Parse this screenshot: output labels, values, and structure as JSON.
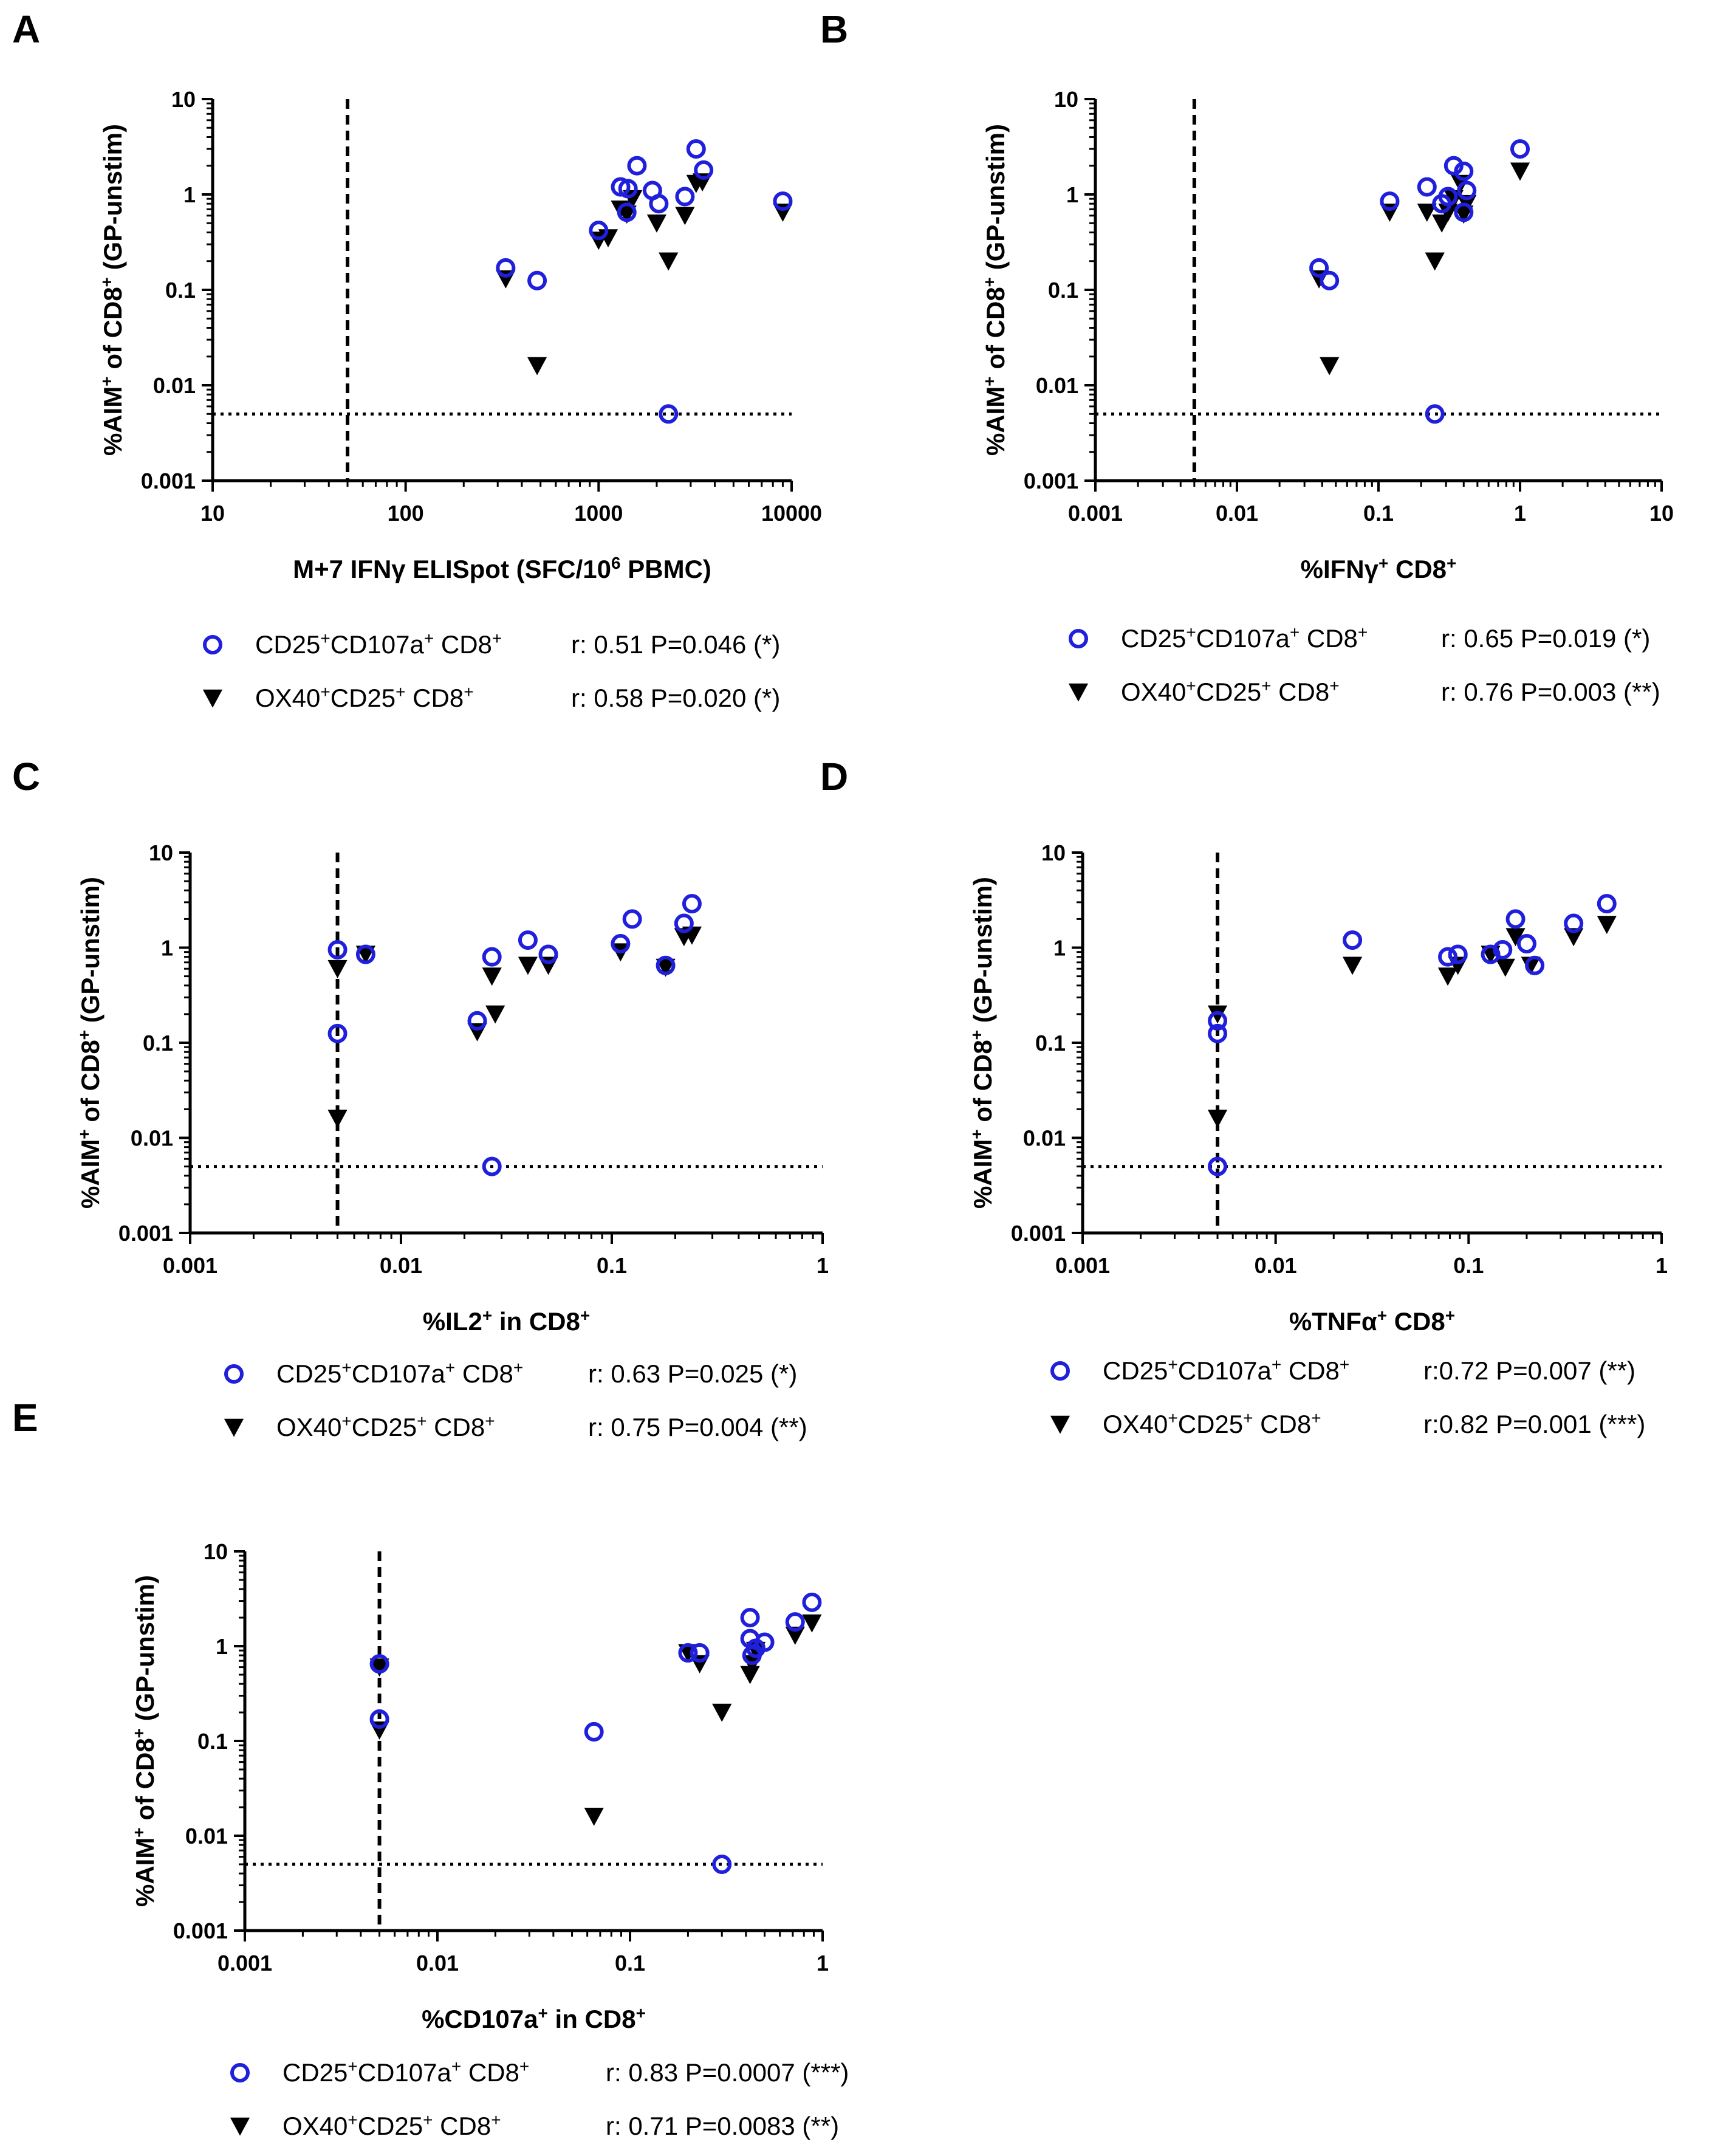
{
  "colors": {
    "circle": "#1f1fdc",
    "triangle": "#000000",
    "axis": "#000000"
  },
  "chart_data": [
    {
      "id": "A",
      "type": "scatter",
      "panel_label": "A",
      "xscale": "log",
      "yscale": "log",
      "xlim": [
        10,
        10000
      ],
      "ylim": [
        0.001,
        10
      ],
      "xticks": [
        "10",
        "100",
        "1000",
        "10000"
      ],
      "yticks": [
        "0.001",
        "0.01",
        "0.1",
        "1",
        "10"
      ],
      "xlabel_parts": [
        [
          "M+7 IFNγ ELISpot (SFC/10",
          ""
        ],
        [
          "6",
          "sup"
        ],
        [
          " PBMC)",
          ""
        ]
      ],
      "ylabel_parts": [
        [
          "%AIM",
          ""
        ],
        [
          "+",
          "sup"
        ],
        [
          " of CD8",
          ""
        ],
        [
          "+",
          "sup"
        ],
        [
          " (GP-unstim)",
          ""
        ]
      ],
      "vline": 50,
      "hline": 0.005,
      "series": [
        {
          "name": "CD25+CD107a+ CD8+",
          "marker": "circle",
          "stats": "r: 0.51 P=0.046 (*)",
          "legend_parts": [
            [
              "CD25",
              ""
            ],
            [
              "+",
              "sup"
            ],
            [
              "CD107a",
              ""
            ],
            [
              "+",
              "sup"
            ],
            [
              " CD8",
              ""
            ],
            [
              "+",
              "sup"
            ]
          ],
          "points": [
            [
              330,
              0.17
            ],
            [
              480,
              0.125
            ],
            [
              1000,
              0.42
            ],
            [
              1300,
              1.2
            ],
            [
              1420,
              1.15
            ],
            [
              1400,
              0.65
            ],
            [
              1580,
              2.0
            ],
            [
              1900,
              1.1
            ],
            [
              2050,
              0.8
            ],
            [
              2300,
              0.005
            ],
            [
              2800,
              0.95
            ],
            [
              3200,
              3.0
            ],
            [
              3500,
              1.8
            ],
            [
              9000,
              0.85
            ]
          ]
        },
        {
          "name": "OX40+CD25+ CD8+",
          "marker": "triangle",
          "stats": "r: 0.58 P=0.020 (*)",
          "legend_parts": [
            [
              "OX40",
              ""
            ],
            [
              "+",
              "sup"
            ],
            [
              "CD25",
              ""
            ],
            [
              "+",
              "sup"
            ],
            [
              " CD8",
              ""
            ],
            [
              "+",
              "sup"
            ]
          ],
          "points": [
            [
              330,
              0.13
            ],
            [
              480,
              0.016
            ],
            [
              1000,
              0.33
            ],
            [
              1120,
              0.35
            ],
            [
              1300,
              0.7
            ],
            [
              1400,
              0.62
            ],
            [
              1500,
              0.9
            ],
            [
              2000,
              0.5
            ],
            [
              2300,
              0.2
            ],
            [
              2800,
              0.6
            ],
            [
              3200,
              1.3
            ],
            [
              3450,
              1.35
            ],
            [
              9000,
              0.65
            ]
          ]
        }
      ]
    },
    {
      "id": "B",
      "type": "scatter",
      "panel_label": "B",
      "xscale": "log",
      "yscale": "log",
      "xlim": [
        0.001,
        10
      ],
      "ylim": [
        0.001,
        10
      ],
      "xticks": [
        "0.001",
        "0.01",
        "0.1",
        "1",
        "10"
      ],
      "yticks": [
        "0.001",
        "0.01",
        "0.1",
        "1",
        "10"
      ],
      "xlabel_parts": [
        [
          "%IFNγ",
          ""
        ],
        [
          "+",
          "sup"
        ],
        [
          " CD8",
          ""
        ],
        [
          "+",
          "sup"
        ]
      ],
      "ylabel_parts": [
        [
          "%AIM",
          ""
        ],
        [
          "+",
          "sup"
        ],
        [
          " of CD8",
          ""
        ],
        [
          "+",
          "sup"
        ],
        [
          " (GP-unstim)",
          ""
        ]
      ],
      "vline": 0.005,
      "hline": 0.005,
      "series": [
        {
          "name": "CD25+CD107a+ CD8+",
          "marker": "circle",
          "stats": "r: 0.65 P=0.019 (*)",
          "legend_parts": [
            [
              "CD25",
              ""
            ],
            [
              "+",
              "sup"
            ],
            [
              "CD107a",
              ""
            ],
            [
              "+",
              "sup"
            ],
            [
              " CD8",
              ""
            ],
            [
              "+",
              "sup"
            ]
          ],
          "points": [
            [
              0.038,
              0.17
            ],
            [
              0.045,
              0.125
            ],
            [
              0.12,
              0.85
            ],
            [
              0.22,
              1.2
            ],
            [
              0.25,
              0.005
            ],
            [
              0.28,
              0.8
            ],
            [
              0.31,
              0.95
            ],
            [
              0.34,
              2.0
            ],
            [
              0.4,
              1.75
            ],
            [
              0.42,
              1.1
            ],
            [
              0.4,
              0.65
            ],
            [
              1.0,
              3.0
            ]
          ]
        },
        {
          "name": "OX40+CD25+ CD8+",
          "marker": "triangle",
          "stats": "r: 0.76 P=0.003 (**)",
          "legend_parts": [
            [
              "OX40",
              ""
            ],
            [
              "+",
              "sup"
            ],
            [
              "CD25",
              ""
            ],
            [
              "+",
              "sup"
            ],
            [
              " CD8",
              ""
            ],
            [
              "+",
              "sup"
            ]
          ],
          "points": [
            [
              0.038,
              0.13
            ],
            [
              0.045,
              0.016
            ],
            [
              0.12,
              0.65
            ],
            [
              0.22,
              0.65
            ],
            [
              0.25,
              0.2
            ],
            [
              0.28,
              0.5
            ],
            [
              0.31,
              0.65
            ],
            [
              0.34,
              0.9
            ],
            [
              0.38,
              1.3
            ],
            [
              0.42,
              0.8
            ],
            [
              0.4,
              0.62
            ],
            [
              1.0,
              1.75
            ]
          ]
        }
      ]
    },
    {
      "id": "C",
      "type": "scatter",
      "panel_label": "C",
      "xscale": "log",
      "yscale": "log",
      "xlim": [
        0.001,
        1
      ],
      "ylim": [
        0.001,
        10
      ],
      "xticks": [
        "0.001",
        "0.01",
        "0.1",
        "1"
      ],
      "yticks": [
        "0.001",
        "0.01",
        "0.1",
        "1",
        "10"
      ],
      "xlabel_parts": [
        [
          "%IL2",
          ""
        ],
        [
          "+",
          "sup"
        ],
        [
          " in CD8",
          ""
        ],
        [
          "+",
          "sup"
        ]
      ],
      "ylabel_parts": [
        [
          "%AIM",
          ""
        ],
        [
          "+",
          "sup"
        ],
        [
          " of CD8",
          ""
        ],
        [
          "+",
          "sup"
        ],
        [
          " (GP-unstim)",
          ""
        ]
      ],
      "vline": 0.005,
      "hline": 0.005,
      "series": [
        {
          "name": "CD25+CD107a+ CD8+",
          "marker": "circle",
          "stats": "r: 0.63 P=0.025 (*)",
          "legend_parts": [
            [
              "CD25",
              ""
            ],
            [
              "+",
              "sup"
            ],
            [
              "CD107a",
              ""
            ],
            [
              "+",
              "sup"
            ],
            [
              " CD8",
              ""
            ],
            [
              "+",
              "sup"
            ]
          ],
          "points": [
            [
              0.005,
              0.95
            ],
            [
              0.005,
              0.125
            ],
            [
              0.0068,
              0.85
            ],
            [
              0.023,
              0.17
            ],
            [
              0.027,
              0.8
            ],
            [
              0.027,
              0.005
            ],
            [
              0.04,
              1.2
            ],
            [
              0.05,
              0.85
            ],
            [
              0.11,
              1.1
            ],
            [
              0.125,
              2.0
            ],
            [
              0.18,
              0.65
            ],
            [
              0.22,
              1.8
            ],
            [
              0.24,
              2.9
            ]
          ]
        },
        {
          "name": "OX40+CD25+ CD8+",
          "marker": "triangle",
          "stats": "r: 0.75 P=0.004 (**)",
          "legend_parts": [
            [
              "OX40",
              ""
            ],
            [
              "+",
              "sup"
            ],
            [
              "CD25",
              ""
            ],
            [
              "+",
              "sup"
            ],
            [
              " CD8",
              ""
            ],
            [
              "+",
              "sup"
            ]
          ],
          "points": [
            [
              0.005,
              0.6
            ],
            [
              0.005,
              0.016
            ],
            [
              0.0068,
              0.85
            ],
            [
              0.023,
              0.13
            ],
            [
              0.027,
              0.5
            ],
            [
              0.028,
              0.2
            ],
            [
              0.04,
              0.65
            ],
            [
              0.05,
              0.65
            ],
            [
              0.11,
              0.9
            ],
            [
              0.18,
              0.62
            ],
            [
              0.22,
              1.3
            ],
            [
              0.24,
              1.35
            ]
          ]
        }
      ]
    },
    {
      "id": "D",
      "type": "scatter",
      "panel_label": "D",
      "xscale": "log",
      "yscale": "log",
      "xlim": [
        0.001,
        1
      ],
      "ylim": [
        0.001,
        10
      ],
      "xticks": [
        "0.001",
        "0.01",
        "0.1",
        "1"
      ],
      "yticks": [
        "0.001",
        "0.01",
        "0.1",
        "1",
        "10"
      ],
      "xlabel_parts": [
        [
          "%TNFα",
          ""
        ],
        [
          "+",
          "sup"
        ],
        [
          " CD8",
          ""
        ],
        [
          "+",
          "sup"
        ]
      ],
      "ylabel_parts": [
        [
          "%AIM",
          ""
        ],
        [
          "+",
          "sup"
        ],
        [
          " of CD8",
          ""
        ],
        [
          "+",
          "sup"
        ],
        [
          " (GP-unstim)",
          ""
        ]
      ],
      "vline": 0.005,
      "hline": 0.005,
      "series": [
        {
          "name": "CD25+CD107a+ CD8+",
          "marker": "circle",
          "stats": "r:0.72 P=0.007 (**)",
          "legend_parts": [
            [
              "CD25",
              ""
            ],
            [
              "+",
              "sup"
            ],
            [
              "CD107a",
              ""
            ],
            [
              "+",
              "sup"
            ],
            [
              " CD8",
              ""
            ],
            [
              "+",
              "sup"
            ]
          ],
          "points": [
            [
              0.005,
              0.17
            ],
            [
              0.005,
              0.125
            ],
            [
              0.005,
              0.005
            ],
            [
              0.025,
              1.2
            ],
            [
              0.078,
              0.8
            ],
            [
              0.088,
              0.85
            ],
            [
              0.13,
              0.85
            ],
            [
              0.15,
              0.95
            ],
            [
              0.175,
              2.0
            ],
            [
              0.2,
              1.1
            ],
            [
              0.22,
              0.65
            ],
            [
              0.35,
              1.8
            ],
            [
              0.52,
              2.9
            ]
          ]
        },
        {
          "name": "OX40+CD25+ CD8+",
          "marker": "triangle",
          "stats": "r:0.82 P=0.001 (***)",
          "legend_parts": [
            [
              "OX40",
              ""
            ],
            [
              "+",
              "sup"
            ],
            [
              "CD25",
              ""
            ],
            [
              "+",
              "sup"
            ],
            [
              " CD8",
              ""
            ],
            [
              "+",
              "sup"
            ]
          ],
          "points": [
            [
              0.005,
              0.2
            ],
            [
              0.005,
              0.016
            ],
            [
              0.025,
              0.65
            ],
            [
              0.078,
              0.5
            ],
            [
              0.088,
              0.65
            ],
            [
              0.13,
              0.85
            ],
            [
              0.155,
              0.62
            ],
            [
              0.175,
              1.3
            ],
            [
              0.21,
              0.65
            ],
            [
              0.35,
              1.3
            ],
            [
              0.52,
              1.75
            ]
          ]
        }
      ]
    },
    {
      "id": "E",
      "type": "scatter",
      "panel_label": "E",
      "xscale": "log",
      "yscale": "log",
      "xlim": [
        0.001,
        1
      ],
      "ylim": [
        0.001,
        10
      ],
      "xticks": [
        "0.001",
        "0.01",
        "0.1",
        "1"
      ],
      "yticks": [
        "0.001",
        "0.01",
        "0.1",
        "1",
        "10"
      ],
      "xlabel_parts": [
        [
          "%CD107a",
          ""
        ],
        [
          "+",
          "sup"
        ],
        [
          " in CD8",
          ""
        ],
        [
          "+",
          "sup"
        ]
      ],
      "ylabel_parts": [
        [
          "%AIM",
          ""
        ],
        [
          "+",
          "sup"
        ],
        [
          " of CD8",
          ""
        ],
        [
          "+",
          "sup"
        ],
        [
          " (GP-unstim)",
          ""
        ]
      ],
      "vline": 0.005,
      "hline": 0.005,
      "series": [
        {
          "name": "CD25+CD107a+ CD8+",
          "marker": "circle",
          "stats": "r: 0.83 P=0.0007 (***)",
          "legend_parts": [
            [
              "CD25",
              ""
            ],
            [
              "+",
              "sup"
            ],
            [
              "CD107a",
              ""
            ],
            [
              "+",
              "sup"
            ],
            [
              " CD8",
              ""
            ],
            [
              "+",
              "sup"
            ]
          ],
          "points": [
            [
              0.005,
              0.65
            ],
            [
              0.005,
              0.17
            ],
            [
              0.065,
              0.125
            ],
            [
              0.2,
              0.85
            ],
            [
              0.23,
              0.85
            ],
            [
              0.3,
              0.005
            ],
            [
              0.42,
              2.0
            ],
            [
              0.42,
              1.2
            ],
            [
              0.43,
              0.8
            ],
            [
              0.45,
              0.95
            ],
            [
              0.5,
              1.1
            ],
            [
              0.72,
              1.8
            ],
            [
              0.88,
              2.9
            ]
          ]
        },
        {
          "name": "OX40+CD25+ CD8+",
          "marker": "triangle",
          "stats": "r: 0.71 P=0.0083 (**)",
          "legend_parts": [
            [
              "OX40",
              ""
            ],
            [
              "+",
              "sup"
            ],
            [
              "CD25",
              ""
            ],
            [
              "+",
              "sup"
            ],
            [
              " CD8",
              ""
            ],
            [
              "+",
              "sup"
            ]
          ],
          "points": [
            [
              0.005,
              0.6
            ],
            [
              0.005,
              0.13
            ],
            [
              0.065,
              0.016
            ],
            [
              0.2,
              0.85
            ],
            [
              0.23,
              0.65
            ],
            [
              0.3,
              0.2
            ],
            [
              0.42,
              0.5
            ],
            [
              0.43,
              0.65
            ],
            [
              0.45,
              0.9
            ],
            [
              0.72,
              1.3
            ],
            [
              0.88,
              1.75
            ]
          ]
        }
      ]
    }
  ]
}
